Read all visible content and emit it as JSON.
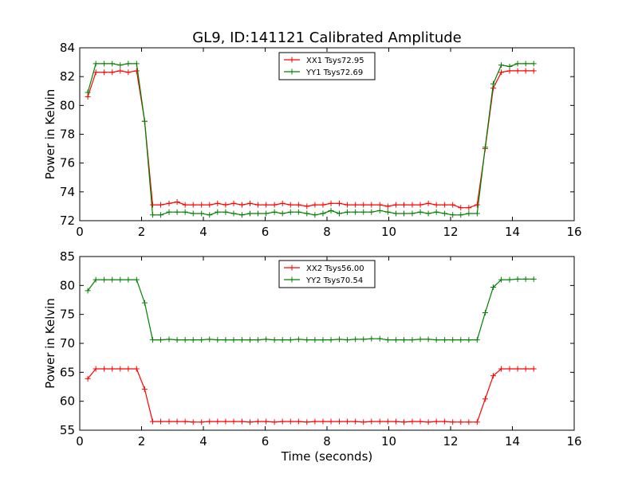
{
  "figure": {
    "title": "GL9, ID:141121 Calibrated Amplitude"
  },
  "colors": {
    "xx": "#ff0000",
    "yy": "#008000",
    "axes": "#000000",
    "background": "#ffffff"
  },
  "chart_data": [
    {
      "type": "line",
      "title": "GL9, ID:141121 Calibrated Amplitude",
      "xlabel": "",
      "ylabel": "Power in Kelvin",
      "xlim": [
        0,
        16
      ],
      "ylim": [
        72,
        84
      ],
      "xticks": [
        "0",
        "2",
        "4",
        "6",
        "8",
        "10",
        "12",
        "14",
        "16"
      ],
      "yticks": [
        "72",
        "74",
        "76",
        "78",
        "80",
        "82",
        "84"
      ],
      "grid": false,
      "legend_position": "upper-center",
      "x": [
        0.26,
        0.52,
        0.79,
        1.05,
        1.31,
        1.57,
        1.84,
        2.1,
        2.36,
        2.62,
        2.89,
        3.15,
        3.41,
        3.67,
        3.94,
        4.2,
        4.46,
        4.72,
        4.98,
        5.25,
        5.51,
        5.77,
        6.03,
        6.3,
        6.56,
        6.82,
        7.08,
        7.35,
        7.61,
        7.87,
        8.13,
        8.4,
        8.66,
        8.92,
        9.18,
        9.44,
        9.71,
        9.97,
        10.23,
        10.49,
        10.76,
        11.02,
        11.28,
        11.54,
        11.81,
        12.07,
        12.33,
        12.59,
        12.86,
        13.12,
        13.38,
        13.64,
        13.91,
        14.17,
        14.43,
        14.69
      ],
      "series": [
        {
          "name": "XX1 Tsys72.95",
          "color": "#ff0000",
          "values": [
            80.6,
            82.3,
            82.3,
            82.3,
            82.4,
            82.3,
            82.4,
            78.9,
            73.1,
            73.1,
            73.2,
            73.3,
            73.1,
            73.1,
            73.1,
            73.1,
            73.2,
            73.1,
            73.2,
            73.1,
            73.2,
            73.1,
            73.1,
            73.1,
            73.2,
            73.1,
            73.1,
            73.0,
            73.1,
            73.1,
            73.2,
            73.2,
            73.1,
            73.1,
            73.1,
            73.1,
            73.1,
            73.0,
            73.1,
            73.1,
            73.1,
            73.1,
            73.2,
            73.1,
            73.1,
            73.1,
            72.9,
            72.9,
            73.1,
            77.0,
            81.2,
            82.3,
            82.4,
            82.4,
            82.4,
            82.4
          ]
        },
        {
          "name": "YY1 Tsys72.69",
          "color": "#008000",
          "values": [
            80.9,
            82.9,
            82.9,
            82.9,
            82.8,
            82.9,
            82.9,
            78.9,
            72.4,
            72.4,
            72.6,
            72.6,
            72.6,
            72.5,
            72.5,
            72.4,
            72.6,
            72.6,
            72.5,
            72.4,
            72.5,
            72.5,
            72.5,
            72.6,
            72.5,
            72.6,
            72.6,
            72.5,
            72.4,
            72.5,
            72.7,
            72.5,
            72.6,
            72.6,
            72.6,
            72.6,
            72.7,
            72.6,
            72.5,
            72.5,
            72.5,
            72.6,
            72.5,
            72.6,
            72.5,
            72.4,
            72.4,
            72.5,
            72.5,
            77.1,
            81.5,
            82.8,
            82.7,
            82.9,
            82.9,
            82.9
          ]
        }
      ]
    },
    {
      "type": "line",
      "title": "",
      "xlabel": "Time (seconds)",
      "ylabel": "Power in Kelvin",
      "xlim": [
        0,
        16
      ],
      "ylim": [
        55,
        85
      ],
      "xticks": [
        "0",
        "2",
        "4",
        "6",
        "8",
        "10",
        "12",
        "14",
        "16"
      ],
      "yticks": [
        "55",
        "60",
        "65",
        "70",
        "75",
        "80",
        "85"
      ],
      "grid": false,
      "legend_position": "upper-center",
      "x": [
        0.26,
        0.52,
        0.79,
        1.05,
        1.31,
        1.57,
        1.84,
        2.1,
        2.36,
        2.62,
        2.89,
        3.15,
        3.41,
        3.67,
        3.94,
        4.2,
        4.46,
        4.72,
        4.98,
        5.25,
        5.51,
        5.77,
        6.03,
        6.3,
        6.56,
        6.82,
        7.08,
        7.35,
        7.61,
        7.87,
        8.13,
        8.4,
        8.66,
        8.92,
        9.18,
        9.44,
        9.71,
        9.97,
        10.23,
        10.49,
        10.76,
        11.02,
        11.28,
        11.54,
        11.81,
        12.07,
        12.33,
        12.59,
        12.86,
        13.12,
        13.38,
        13.64,
        13.91,
        14.17,
        14.43,
        14.69
      ],
      "series": [
        {
          "name": "XX2 Tsys56.00",
          "color": "#ff0000",
          "values": [
            63.9,
            65.6,
            65.6,
            65.6,
            65.6,
            65.6,
            65.6,
            62.1,
            56.5,
            56.5,
            56.5,
            56.5,
            56.5,
            56.4,
            56.4,
            56.5,
            56.5,
            56.5,
            56.5,
            56.5,
            56.4,
            56.5,
            56.5,
            56.4,
            56.5,
            56.5,
            56.5,
            56.4,
            56.5,
            56.5,
            56.5,
            56.5,
            56.5,
            56.5,
            56.4,
            56.5,
            56.5,
            56.5,
            56.5,
            56.4,
            56.5,
            56.5,
            56.4,
            56.5,
            56.5,
            56.4,
            56.4,
            56.4,
            56.4,
            60.4,
            64.4,
            65.6,
            65.6,
            65.6,
            65.6,
            65.6
          ]
        },
        {
          "name": "YY2 Tsys70.54",
          "color": "#008000",
          "values": [
            79.1,
            81.0,
            81.0,
            81.0,
            81.0,
            81.0,
            81.0,
            77.0,
            70.6,
            70.6,
            70.7,
            70.6,
            70.6,
            70.6,
            70.6,
            70.7,
            70.6,
            70.6,
            70.6,
            70.6,
            70.6,
            70.6,
            70.7,
            70.6,
            70.6,
            70.6,
            70.7,
            70.6,
            70.6,
            70.6,
            70.6,
            70.7,
            70.6,
            70.7,
            70.7,
            70.8,
            70.8,
            70.6,
            70.6,
            70.6,
            70.6,
            70.7,
            70.7,
            70.6,
            70.6,
            70.6,
            70.6,
            70.6,
            70.6,
            75.3,
            79.7,
            81.0,
            81.0,
            81.1,
            81.1,
            81.1
          ]
        }
      ]
    }
  ]
}
